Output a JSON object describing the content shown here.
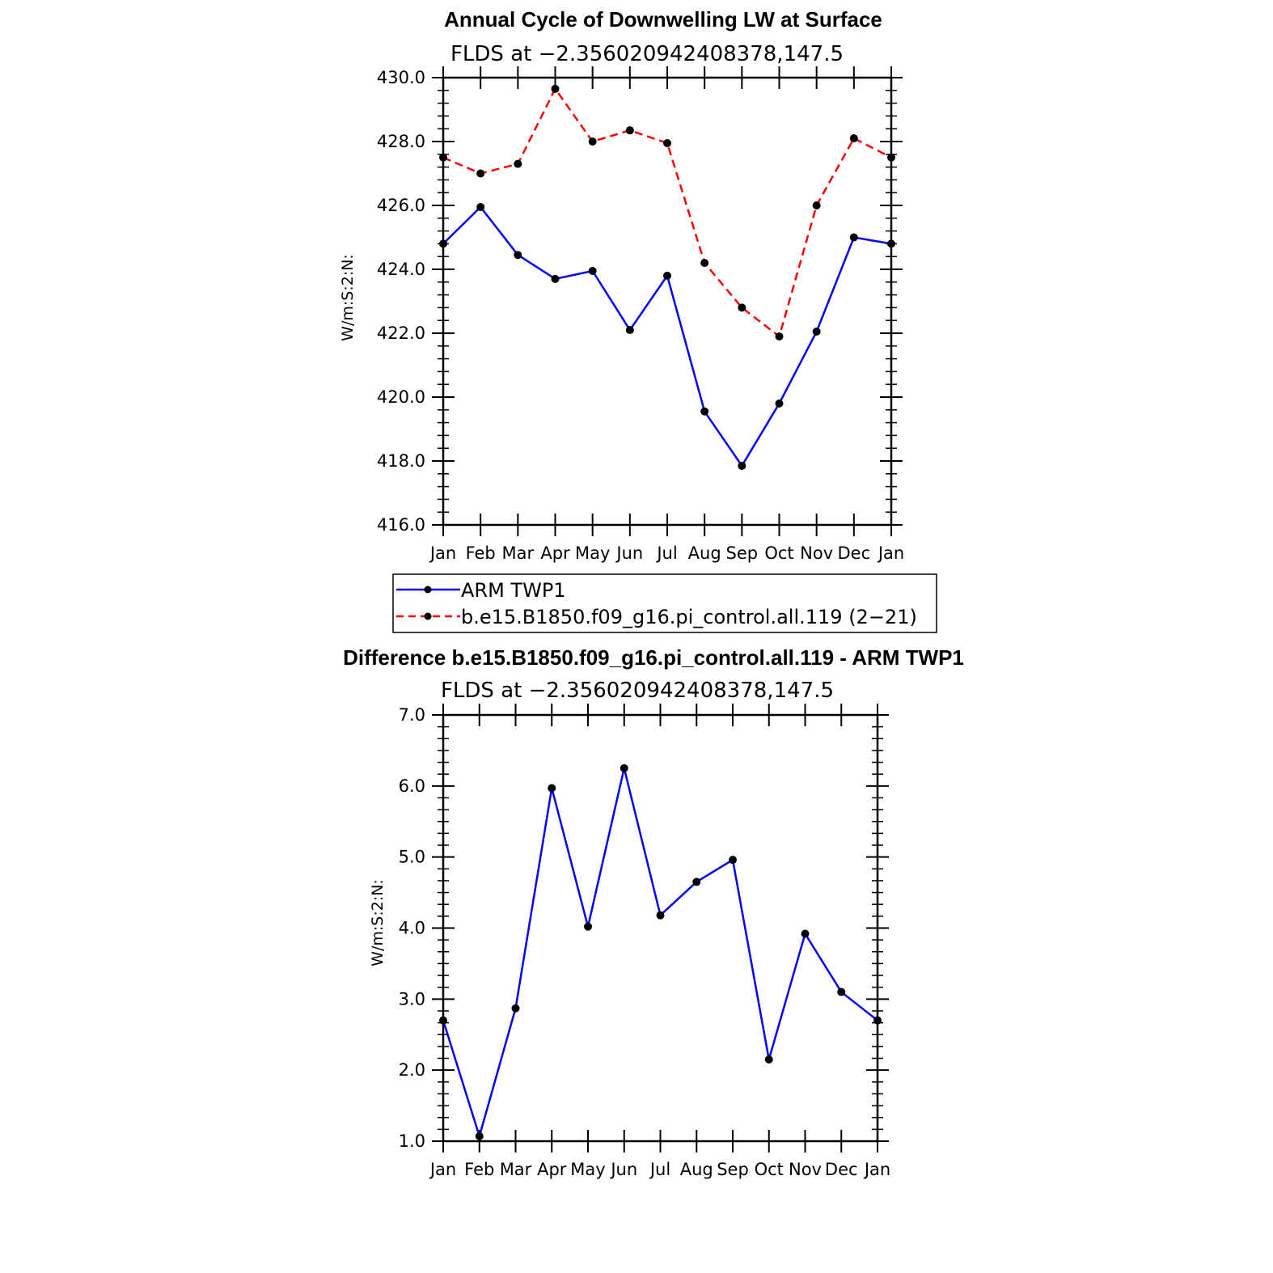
{
  "chart_data": [
    {
      "type": "line",
      "title": "Annual Cycle of Downwelling LW at Surface",
      "subtitle": "FLDS at −2.356020942408378,147.5",
      "xlabel": "",
      "ylabel": "W/m:S:2:N:",
      "categories": [
        "Jan",
        "Feb",
        "Mar",
        "Apr",
        "May",
        "Jun",
        "Jul",
        "Aug",
        "Sep",
        "Oct",
        "Nov",
        "Dec",
        "Jan"
      ],
      "ylim": [
        416.0,
        430.0
      ],
      "yticks": [
        "416.0",
        "418.0",
        "420.0",
        "422.0",
        "424.0",
        "426.0",
        "428.0",
        "430.0"
      ],
      "ytick_values": [
        416,
        418,
        420,
        422,
        424,
        426,
        428,
        430
      ],
      "series": [
        {
          "name": "ARM TWP1",
          "color": "#0000ff",
          "dash": "solid",
          "values": [
            424.8,
            425.95,
            424.45,
            423.7,
            423.95,
            422.1,
            423.8,
            419.55,
            417.85,
            419.8,
            422.05,
            425.0,
            424.8
          ]
        },
        {
          "name": "b.e15.B1850.f09_g16.pi_control.all.119 (2−21)",
          "color": "#ff0000",
          "dash": "dashed",
          "values": [
            427.5,
            427.0,
            427.3,
            429.65,
            428.0,
            428.35,
            427.95,
            424.2,
            422.8,
            421.9,
            426.0,
            428.1,
            427.5
          ]
        }
      ],
      "legend": "bottom"
    },
    {
      "type": "line",
      "title": "Difference b.e15.B1850.f09_g16.pi_control.all.119 - ARM TWP1",
      "subtitle": "FLDS at −2.356020942408378,147.5",
      "xlabel": "",
      "ylabel": "W/m:S:2:N:",
      "categories": [
        "Jan",
        "Feb",
        "Mar",
        "Apr",
        "May",
        "Jun",
        "Jul",
        "Aug",
        "Sep",
        "Oct",
        "Nov",
        "Dec",
        "Jan"
      ],
      "ylim": [
        1.0,
        7.0
      ],
      "yticks": [
        "1.0",
        "2.0",
        "3.0",
        "4.0",
        "5.0",
        "6.0",
        "7.0"
      ],
      "ytick_values": [
        1,
        2,
        3,
        4,
        5,
        6,
        7
      ],
      "series": [
        {
          "name": "Difference",
          "color": "#0000ff",
          "dash": "solid",
          "values": [
            2.7,
            1.07,
            2.87,
            5.97,
            4.02,
            6.25,
            4.18,
            4.65,
            4.96,
            2.15,
            3.92,
            3.1,
            2.7
          ]
        }
      ]
    }
  ]
}
